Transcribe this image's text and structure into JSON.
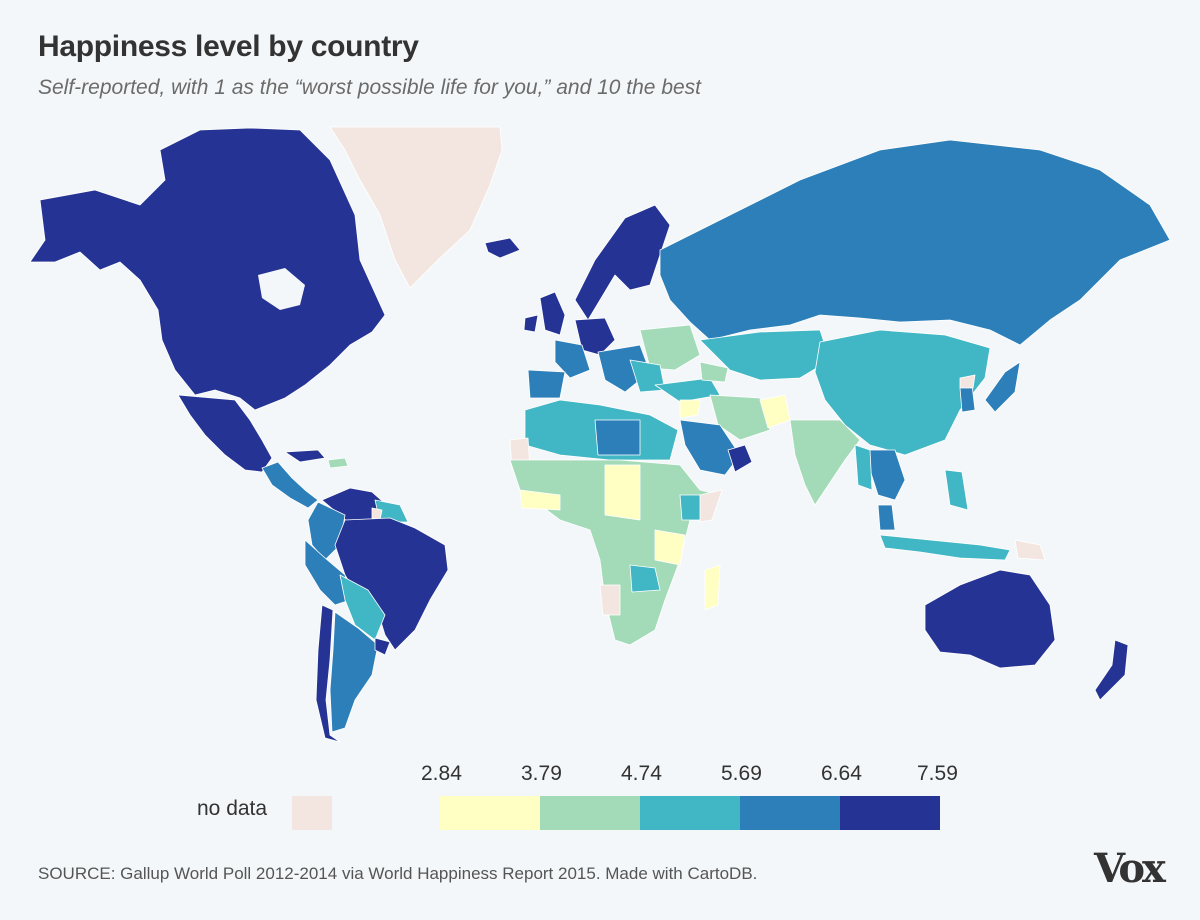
{
  "header": {
    "title": "Happiness level by country",
    "subtitle": "Self-reported, with 1 as the “worst possible life for you,” and 10 the best"
  },
  "legend": {
    "no_data_label": "no data",
    "no_data_color": "#f3e6e0",
    "ticks": [
      "2.84",
      "3.79",
      "4.74",
      "5.69",
      "6.64",
      "7.59"
    ],
    "colors": [
      "#ffffc4",
      "#a3dbb8",
      "#41b6c4",
      "#2c7fb8",
      "#253494"
    ]
  },
  "map": {
    "ocean_color": "#f4f7f9",
    "border_color": "#ffffff",
    "classes_by_region": {
      "north_america_and_caribbean": "#253494",
      "central_america": "#2c7fb8",
      "greenland": "no data",
      "brazil_venezuela_chile_uruguay": "#253494",
      "andean_south_america": "#2c7fb8",
      "paraguay_bolivia": "#41b6c4",
      "nordics_uk_northwest_europe": "#253494",
      "southern_central_europe_russia": "#2c7fb8",
      "eastern_europe_central_asia_china": "#41b6c4",
      "north_africa": "#41b6c4",
      "libya_saudi_arabia_gulf": "#2c7fb8",
      "sub_saharan_africa": "#a3dbb8",
      "central_african_republic_chad_benin_burundi_tanzania_madagascar": "#ffffc4",
      "syria_afghanistan": "#ffffc4",
      "south_asia_iran": "#a3dbb8",
      "thailand_malaysia": "#2c7fb8",
      "southeast_asia_indonesia": "#41b6c4",
      "japan_korea_taiwan": "#2c7fb8",
      "australia_new_zealand": "#253494",
      "papua_new_guinea_somalia_western_sahara_north_korea": "no data"
    }
  },
  "footer": {
    "source": "SOURCE: Gallup World Poll 2012-2014 via World Happiness Report 2015. Made with CartoDB.",
    "logo": "Vox"
  }
}
